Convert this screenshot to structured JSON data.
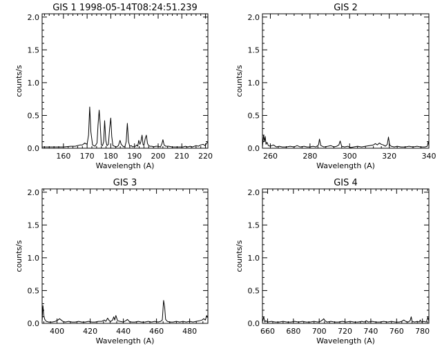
{
  "chart_data": [
    {
      "type": "line",
      "title": "GIS 1 1998-05-14T08:24:51.239",
      "xlabel": "Wavelength (A)",
      "ylabel": "counts/s",
      "xlim": [
        151,
        221
      ],
      "ylim": [
        0,
        2.05
      ],
      "xticks": [
        160,
        170,
        180,
        190,
        200,
        210,
        220
      ],
      "yticks": [
        0.0,
        0.5,
        1.0,
        1.5,
        2.0
      ],
      "ytick_labels": [
        "0.0",
        "0.5",
        "1.0",
        "1.5",
        "2.0"
      ],
      "series": [
        {
          "x": [
            151,
            157,
            160,
            163,
            165,
            167,
            168,
            169,
            170,
            170.6,
            171.1,
            171.6,
            172.3,
            173.3,
            174.2,
            174.6,
            175.1,
            175.5,
            176.0,
            176.5,
            177.0,
            177.4,
            177.9,
            178.4,
            179.0,
            179.5,
            180.0,
            180.4,
            180.9,
            181.6,
            182.4,
            183.2,
            183.9,
            184.4,
            184.9,
            185.5,
            186.0,
            186.5,
            187.0,
            187.5,
            188.0,
            188.6,
            189.3,
            190.0,
            190.5,
            191.0,
            191.4,
            191.8,
            192.3,
            192.7,
            193.2,
            193.6,
            194.0,
            194.5,
            195.0,
            195.5,
            196.0,
            196.6,
            197.4,
            198.0,
            199.0,
            200.0,
            201.0,
            201.6,
            202.0,
            202.5,
            203.2,
            204.5,
            206.0,
            208.0,
            209.5,
            210.5,
            211.5,
            212.5,
            213.5,
            214.5,
            216.0,
            217.0,
            218.0,
            219.0,
            219.8,
            220.4,
            221.0
          ],
          "y": [
            0.02,
            0.02,
            0.02,
            0.03,
            0.03,
            0.05,
            0.05,
            0.08,
            0.06,
            0.2,
            0.63,
            0.25,
            0.05,
            0.03,
            0.08,
            0.35,
            0.58,
            0.38,
            0.05,
            0.04,
            0.1,
            0.42,
            0.12,
            0.04,
            0.06,
            0.3,
            0.46,
            0.18,
            0.04,
            0.03,
            0.02,
            0.04,
            0.12,
            0.06,
            0.04,
            0.02,
            0.03,
            0.1,
            0.38,
            0.1,
            0.03,
            0.04,
            0.02,
            0.03,
            0.03,
            0.05,
            0.03,
            0.12,
            0.06,
            0.1,
            0.2,
            0.06,
            0.04,
            0.14,
            0.2,
            0.07,
            0.04,
            0.03,
            0.03,
            0.02,
            0.03,
            0.03,
            0.02,
            0.07,
            0.13,
            0.05,
            0.03,
            0.03,
            0.02,
            0.02,
            0.02,
            0.02,
            0.03,
            0.02,
            0.03,
            0.02,
            0.04,
            0.03,
            0.05,
            0.06,
            0.04,
            0.07,
            0.1
          ]
        }
      ]
    },
    {
      "type": "line",
      "title": "GIS 2",
      "xlabel": "Wavelength (A)",
      "ylabel": "counts/s",
      "xlim": [
        256,
        340
      ],
      "ylim": [
        0,
        2.05
      ],
      "xticks": [
        260,
        280,
        300,
        320,
        340
      ],
      "yticks": [
        0.0,
        0.5,
        1.0,
        1.5,
        2.0
      ],
      "ytick_labels": [
        "0.0",
        "0.5",
        "1.0",
        "1.5",
        "2.0"
      ],
      "series": [
        {
          "x": [
            256,
            256.6,
            257.0,
            257.4,
            257.8,
            258.3,
            259.0,
            260.0,
            261.5,
            263.0,
            264.5,
            266.0,
            268.0,
            270.0,
            272.0,
            273.5,
            275.0,
            277.0,
            278.5,
            280.0,
            281.5,
            283.0,
            284.3,
            284.8,
            285.5,
            287.0,
            289.0,
            290.5,
            292.0,
            293.5,
            294.6,
            295.2,
            296.0,
            297.5,
            299.0,
            300.5,
            302.0,
            304.0,
            306.0,
            308.0,
            310.0,
            312.0,
            313.0,
            314.0,
            315.0,
            316.0,
            317.0,
            318.0,
            319.0,
            319.6,
            320.2,
            321.0,
            322.5,
            324.0,
            326.0,
            328.0,
            330.0,
            332.0,
            334.0,
            336.0,
            338.0,
            339.2,
            339.7,
            340.0
          ],
          "y": [
            0.02,
            0.2,
            0.1,
            0.18,
            0.06,
            0.09,
            0.04,
            0.03,
            0.05,
            0.02,
            0.03,
            0.02,
            0.02,
            0.03,
            0.02,
            0.04,
            0.02,
            0.03,
            0.02,
            0.02,
            0.03,
            0.02,
            0.05,
            0.14,
            0.04,
            0.02,
            0.03,
            0.04,
            0.02,
            0.03,
            0.05,
            0.11,
            0.03,
            0.02,
            0.03,
            0.01,
            0.02,
            0.03,
            0.02,
            0.03,
            0.04,
            0.05,
            0.07,
            0.05,
            0.08,
            0.06,
            0.05,
            0.03,
            0.06,
            0.17,
            0.05,
            0.03,
            0.02,
            0.03,
            0.02,
            0.02,
            0.03,
            0.02,
            0.03,
            0.02,
            0.02,
            0.03,
            0.1,
            0.04
          ]
        }
      ]
    },
    {
      "type": "line",
      "title": "GIS 3",
      "xlabel": "Wavelength (A)",
      "ylabel": "counts/s",
      "xlim": [
        391,
        491
      ],
      "ylim": [
        0,
        2.05
      ],
      "xticks": [
        400,
        420,
        440,
        460,
        480
      ],
      "yticks": [
        0.0,
        0.5,
        1.0,
        1.5,
        2.0
      ],
      "ytick_labels": [
        "0.0",
        "0.5",
        "1.0",
        "1.5",
        "2.0"
      ],
      "series": [
        {
          "x": [
            391,
            391.5,
            392.0,
            392.6,
            393.5,
            395.0,
            397.0,
            399.0,
            400.5,
            401.5,
            402.5,
            403.5,
            405.0,
            407.0,
            409.0,
            411.0,
            413.0,
            415.0,
            417.0,
            419.0,
            421.0,
            423.0,
            425.0,
            427.0,
            428.5,
            429.5,
            430.5,
            431.5,
            432.5,
            433.5,
            434.2,
            434.8,
            435.5,
            436.5,
            438.0,
            440.0,
            441.5,
            442.5,
            443.5,
            445.0,
            447.0,
            449.0,
            451.0,
            453.0,
            455.0,
            457.0,
            459.0,
            461.0,
            462.5,
            463.5,
            464.3,
            464.9,
            465.5,
            466.5,
            468.0,
            470.0,
            472.0,
            474.0,
            476.0,
            478.0,
            480.0,
            482.0,
            484.0,
            486.0,
            487.5,
            488.5,
            489.5,
            490.3,
            491.0
          ],
          "y": [
            0.03,
            0.27,
            0.12,
            0.06,
            0.03,
            0.02,
            0.02,
            0.03,
            0.05,
            0.07,
            0.05,
            0.03,
            0.02,
            0.03,
            0.02,
            0.02,
            0.03,
            0.02,
            0.02,
            0.03,
            0.02,
            0.02,
            0.03,
            0.03,
            0.05,
            0.03,
            0.08,
            0.04,
            0.03,
            0.05,
            0.1,
            0.05,
            0.12,
            0.04,
            0.03,
            0.02,
            0.04,
            0.06,
            0.03,
            0.02,
            0.02,
            0.03,
            0.02,
            0.02,
            0.03,
            0.02,
            0.03,
            0.02,
            0.03,
            0.05,
            0.35,
            0.25,
            0.06,
            0.03,
            0.02,
            0.02,
            0.03,
            0.02,
            0.03,
            0.02,
            0.03,
            0.02,
            0.03,
            0.04,
            0.05,
            0.07,
            0.05,
            0.12,
            0.08
          ]
        }
      ]
    },
    {
      "type": "line",
      "title": "GIS 4",
      "xlabel": "Wavelength (A)",
      "ylabel": "counts/s",
      "xlim": [
        656,
        785
      ],
      "ylim": [
        0,
        2.05
      ],
      "xticks": [
        660,
        680,
        700,
        720,
        740,
        760,
        780
      ],
      "yticks": [
        0.0,
        0.5,
        1.0,
        1.5,
        2.0
      ],
      "ytick_labels": [
        "0.0",
        "0.5",
        "1.0",
        "1.5",
        "2.0"
      ],
      "series": [
        {
          "x": [
            656,
            657.0,
            657.8,
            658.6,
            660.0,
            663.0,
            666.0,
            669.0,
            672.0,
            675.0,
            678.0,
            681.0,
            684.0,
            687.0,
            690.0,
            693.0,
            696.0,
            699.0,
            701.0,
            702.5,
            703.5,
            704.5,
            706.0,
            709.0,
            712.0,
            715.0,
            718.0,
            721.0,
            724.0,
            727.0,
            730.0,
            733.0,
            735.0,
            736.5,
            738.0,
            741.0,
            744.0,
            747.0,
            750.0,
            753.0,
            756.0,
            759.0,
            762.0,
            764.0,
            765.5,
            767.0,
            769.0,
            770.5,
            771.3,
            772.0,
            774.0,
            776.0,
            777.5,
            778.3,
            779.0,
            781.0,
            783.0,
            784.2,
            785.0
          ],
          "y": [
            0.02,
            0.1,
            0.02,
            0.04,
            0.02,
            0.03,
            0.02,
            0.02,
            0.03,
            0.02,
            0.02,
            0.03,
            0.02,
            0.03,
            0.02,
            0.02,
            0.03,
            0.02,
            0.03,
            0.05,
            0.07,
            0.04,
            0.02,
            0.03,
            0.02,
            0.02,
            0.03,
            0.02,
            0.03,
            0.02,
            0.02,
            0.03,
            0.02,
            0.04,
            0.02,
            0.03,
            0.02,
            0.02,
            0.03,
            0.02,
            0.03,
            0.02,
            0.02,
            0.03,
            0.05,
            0.03,
            0.02,
            0.04,
            0.1,
            0.03,
            0.02,
            0.03,
            0.02,
            0.05,
            0.02,
            0.03,
            0.02,
            0.09,
            0.03
          ]
        }
      ]
    }
  ]
}
